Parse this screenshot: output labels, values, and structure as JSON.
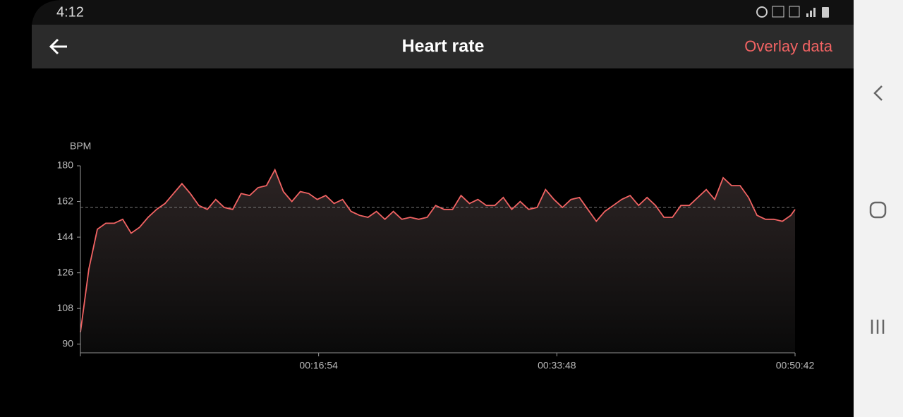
{
  "status_bar": {
    "time": "4:12"
  },
  "header": {
    "title": "Heart rate",
    "action": "Overlay data"
  },
  "chart_data": {
    "type": "line",
    "y_label": "BPM",
    "color": "#f26363",
    "average": 159,
    "ylim": [
      86,
      180
    ],
    "yticks": [
      90,
      108,
      126,
      144,
      162,
      180
    ],
    "xlim": [
      0,
      3042
    ],
    "xticks": [
      {
        "value": 1014,
        "label": "00:16:54"
      },
      {
        "value": 2028,
        "label": "00:33:48"
      },
      {
        "value": 3042,
        "label": "00:50:42"
      }
    ],
    "x": [
      0,
      36,
      72,
      108,
      144,
      180,
      216,
      252,
      288,
      324,
      360,
      396,
      432,
      468,
      504,
      540,
      576,
      612,
      648,
      684,
      720,
      756,
      792,
      828,
      864,
      900,
      936,
      972,
      1008,
      1044,
      1080,
      1116,
      1152,
      1188,
      1224,
      1260,
      1296,
      1332,
      1368,
      1404,
      1440,
      1476,
      1512,
      1548,
      1584,
      1620,
      1656,
      1692,
      1728,
      1764,
      1800,
      1836,
      1872,
      1908,
      1944,
      1980,
      2016,
      2052,
      2088,
      2124,
      2160,
      2196,
      2232,
      2268,
      2304,
      2340,
      2376,
      2412,
      2448,
      2484,
      2520,
      2556,
      2592,
      2628,
      2664,
      2700,
      2736,
      2772,
      2808,
      2844,
      2880,
      2916,
      2952,
      2988,
      3024,
      3042
    ],
    "values": [
      96,
      128,
      148,
      151,
      151,
      153,
      146,
      149,
      154,
      158,
      161,
      166,
      171,
      166,
      160,
      158,
      163,
      159,
      158,
      166,
      165,
      169,
      170,
      178,
      167,
      162,
      167,
      166,
      163,
      165,
      161,
      163,
      157,
      155,
      154,
      157,
      153,
      157,
      153,
      154,
      153,
      154,
      160,
      158,
      158,
      165,
      161,
      163,
      160,
      160,
      164,
      158,
      162,
      158,
      159,
      168,
      163,
      159,
      163,
      164,
      158,
      152,
      157,
      160,
      163,
      165,
      160,
      164,
      160,
      154,
      154,
      160,
      160,
      164,
      168,
      163,
      174,
      170,
      170,
      164,
      155,
      153,
      153,
      152,
      155,
      158
    ]
  }
}
